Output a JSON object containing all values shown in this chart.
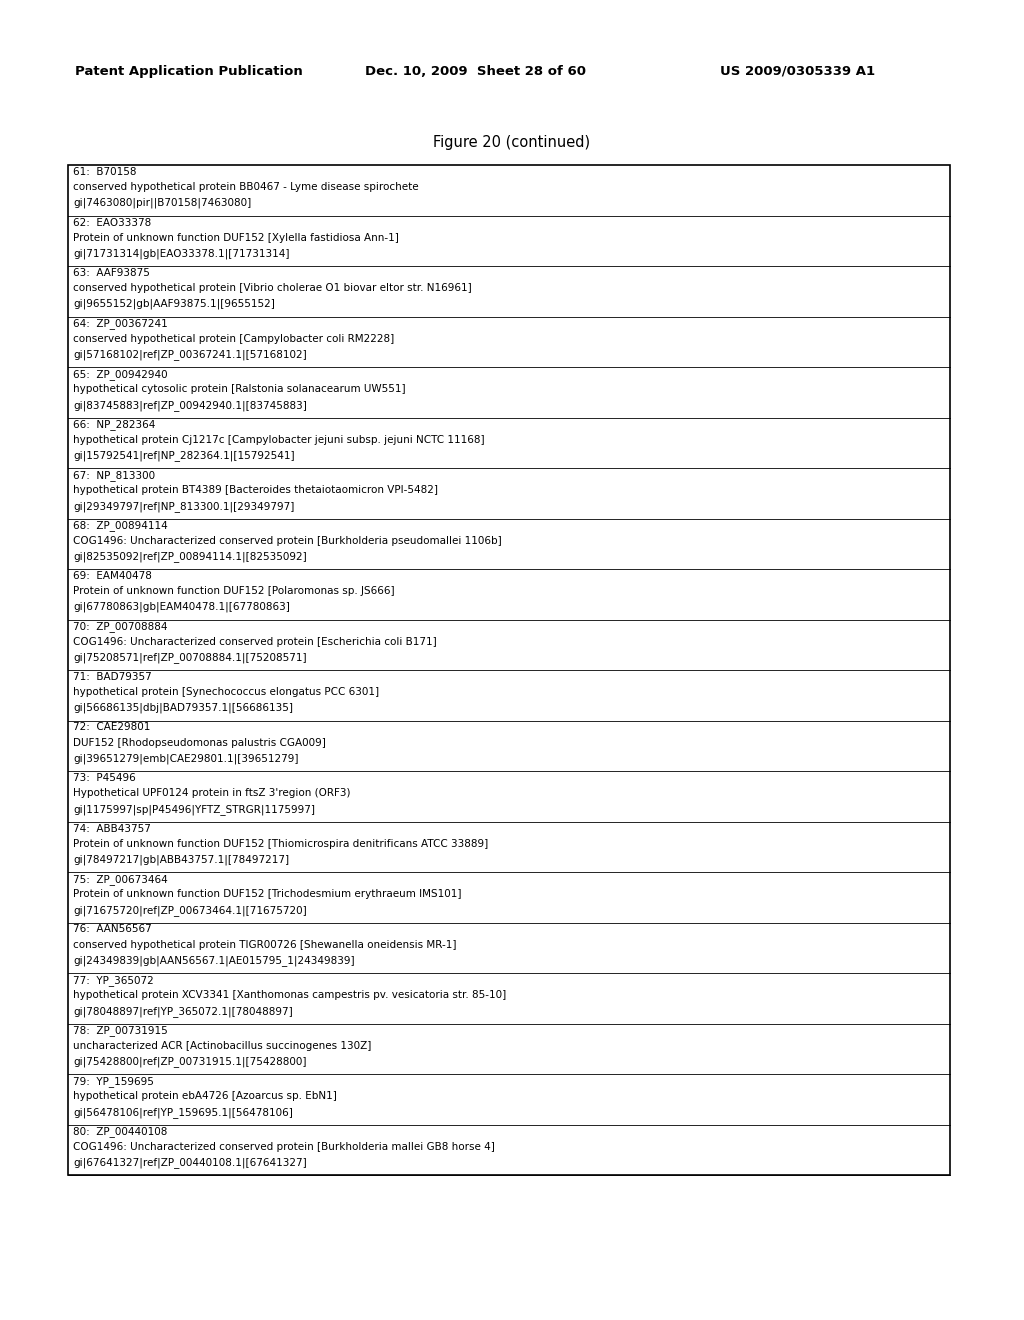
{
  "header_left": "Patent Application Publication",
  "header_mid": "Dec. 10, 2009  Sheet 28 of 60",
  "header_right": "US 2009/0305339 A1",
  "figure_title": "Figure 20 (continued)",
  "entries": [
    {
      "num": "61:",
      "accession": "B70158",
      "line2": "conserved hypothetical protein BB0467 - Lyme disease spirochete",
      "line3": "gi|7463080|pir||B70158|7463080]"
    },
    {
      "num": "62:",
      "accession": "EAO33378",
      "line2": "Protein of unknown function DUF152 [Xylella fastidiosa Ann-1]",
      "line3": "gi|71731314|gb|EAO33378.1|[71731314]"
    },
    {
      "num": "63:",
      "accession": "AAF93875",
      "line2": "conserved hypothetical protein [Vibrio cholerae O1 biovar eltor str. N16961]",
      "line3": "gi|9655152|gb|AAF93875.1|[9655152]"
    },
    {
      "num": "64:",
      "accession": "ZP_00367241",
      "line2": "conserved hypothetical protein [Campylobacter coli RM2228]",
      "line3": "gi|57168102|ref|ZP_00367241.1|[57168102]"
    },
    {
      "num": "65:",
      "accession": "ZP_00942940",
      "line2": "hypothetical cytosolic protein [Ralstonia solanacearum UW551]",
      "line3": "gi|83745883|ref|ZP_00942940.1|[83745883]"
    },
    {
      "num": "66:",
      "accession": "NP_282364",
      "line2": "hypothetical protein Cj1217c [Campylobacter jejuni subsp. jejuni NCTC 11168]",
      "line3": "gi|15792541|ref|NP_282364.1|[15792541]"
    },
    {
      "num": "67:",
      "accession": "NP_813300",
      "line2": "hypothetical protein BT4389 [Bacteroides thetaiotaomicron VPI-5482]",
      "line3": "gi|29349797|ref|NP_813300.1|[29349797]"
    },
    {
      "num": "68:",
      "accession": "ZP_00894114",
      "line2": "COG1496: Uncharacterized conserved protein [Burkholderia pseudomallei 1106b]",
      "line3": "gi|82535092|ref|ZP_00894114.1|[82535092]"
    },
    {
      "num": "69:",
      "accession": "EAM40478",
      "line2": "Protein of unknown function DUF152 [Polaromonas sp. JS666]",
      "line3": "gi|67780863|gb|EAM40478.1|[67780863]"
    },
    {
      "num": "70:",
      "accession": "ZP_00708884",
      "line2": "COG1496: Uncharacterized conserved protein [Escherichia coli B171]",
      "line3": "gi|75208571|ref|ZP_00708884.1|[75208571]"
    },
    {
      "num": "71:",
      "accession": "BAD79357",
      "line2": "hypothetical protein [Synechococcus elongatus PCC 6301]",
      "line3": "gi|56686135|dbj|BAD79357.1|[56686135]"
    },
    {
      "num": "72:",
      "accession": "CAE29801",
      "line2": "DUF152 [Rhodopseudomonas palustris CGA009]",
      "line3": "gi|39651279|emb|CAE29801.1|[39651279]"
    },
    {
      "num": "73:",
      "accession": "P45496",
      "line2": "Hypothetical UPF0124 protein in ftsZ 3'region (ORF3)",
      "line3": "gi|1175997|sp|P45496|YFTZ_STRGR|1175997]"
    },
    {
      "num": "74:",
      "accession": "ABB43757",
      "line2": "Protein of unknown function DUF152 [Thiomicrospira denitrificans ATCC 33889]",
      "line3": "gi|78497217|gb|ABB43757.1|[78497217]"
    },
    {
      "num": "75:",
      "accession": "ZP_00673464",
      "line2": "Protein of unknown function DUF152 [Trichodesmium erythraeum IMS101]",
      "line3": "gi|71675720|ref|ZP_00673464.1|[71675720]"
    },
    {
      "num": "76:",
      "accession": "AAN56567",
      "line2": "conserved hypothetical protein TIGR00726 [Shewanella oneidensis MR-1]",
      "line3": "gi|24349839|gb|AAN56567.1|AE015795_1|24349839]"
    },
    {
      "num": "77:",
      "accession": "YP_365072",
      "line2": "hypothetical protein XCV3341 [Xanthomonas campestris pv. vesicatoria str. 85-10]",
      "line3": "gi|78048897|ref|YP_365072.1|[78048897]"
    },
    {
      "num": "78:",
      "accession": "ZP_00731915",
      "line2": "uncharacterized ACR [Actinobacillus succinogenes 130Z]",
      "line3": "gi|75428800|ref|ZP_00731915.1|[75428800]"
    },
    {
      "num": "79:",
      "accession": "YP_159695",
      "line2": "hypothetical protein ebA4726 [Azoarcus sp. EbN1]",
      "line3": "gi|56478106|ref|YP_159695.1|[56478106]"
    },
    {
      "num": "80:",
      "accession": "ZP_00440108",
      "line2": "COG1496: Uncharacterized conserved protein [Burkholderia mallei GB8 horse 4]",
      "line3": "gi|67641327|ref|ZP_00440108.1|[67641327]"
    }
  ],
  "bg_color": "#ffffff",
  "text_color": "#000000",
  "border_color": "#000000",
  "font_size": 7.5,
  "header_font_size": 9.5,
  "title_font_size": 10.5
}
